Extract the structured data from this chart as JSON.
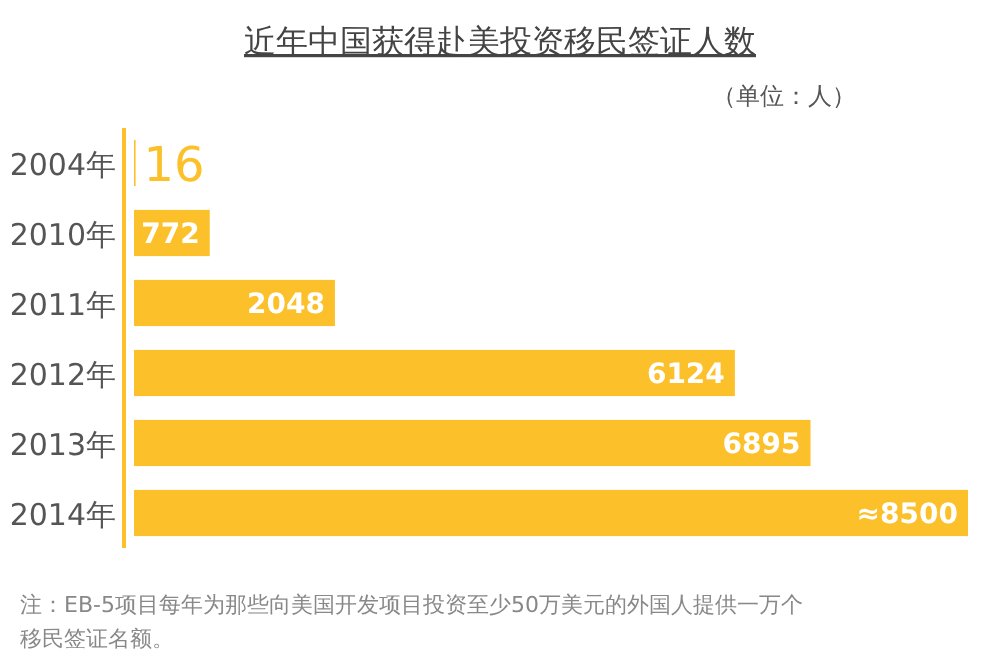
{
  "chart_data": {
    "type": "bar",
    "orientation": "horizontal",
    "title": "近年中国获得赴美投资移民签证人数",
    "categories": [
      "2004年",
      "2010年",
      "2011年",
      "2012年",
      "2013年",
      "2014年"
    ],
    "values": [
      16,
      772,
      2048,
      6124,
      6895,
      8500
    ],
    "value_labels": [
      "16",
      "772",
      "2048",
      "6124",
      "6895",
      "≈8500"
    ],
    "color": "#fcc12a",
    "annotations": [
      "（单位：人）",
      "注：EB-5项目每年为那些向美国开发项目投资至少50万美元的外国人提供一万个移民签证名额。"
    ]
  }
}
